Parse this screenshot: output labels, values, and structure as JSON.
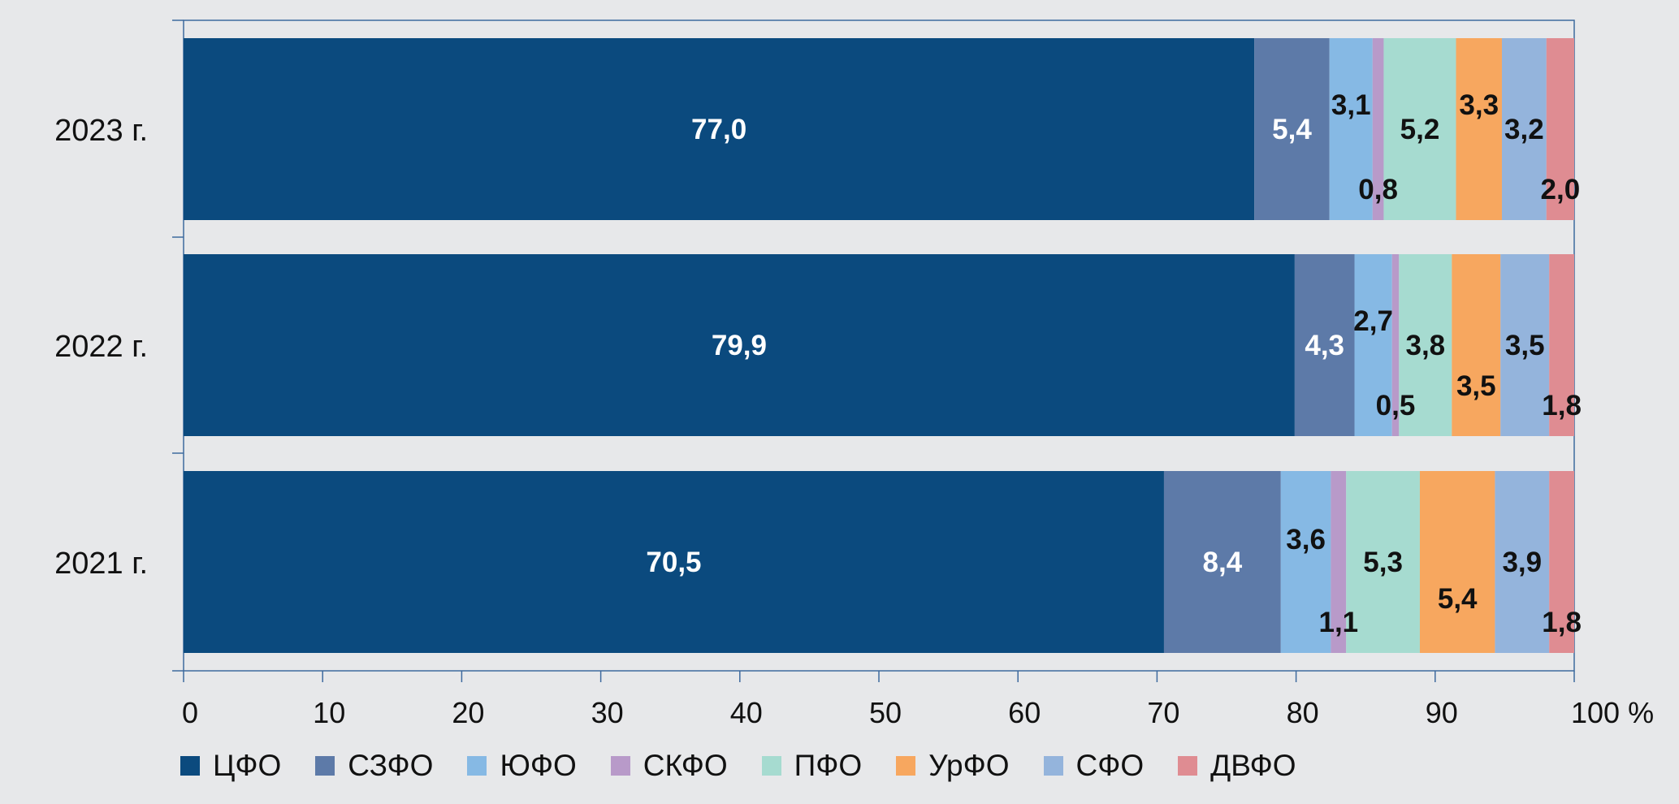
{
  "chart_data": {
    "type": "bar",
    "orientation": "horizontal",
    "stacked": true,
    "categories": [
      "2023 г.",
      "2022 г.",
      "2021 г."
    ],
    "series": [
      {
        "name": "ЦФО",
        "color": "#0b4a7e",
        "values": [
          77.0,
          79.9,
          70.5
        ],
        "labels": [
          "77,0",
          "79,9",
          "70,5"
        ]
      },
      {
        "name": "СЗФО",
        "color": "#5d7aa8",
        "values": [
          5.4,
          4.3,
          8.4
        ],
        "labels": [
          "5,4",
          "4,3",
          "8,4"
        ]
      },
      {
        "name": "ЮФО",
        "color": "#86b9e4",
        "values": [
          3.1,
          2.7,
          3.6
        ],
        "labels": [
          "3,1",
          "2,7",
          "3,6"
        ]
      },
      {
        "name": "СКФО",
        "color": "#b89ac9",
        "values": [
          0.8,
          0.5,
          1.1
        ],
        "labels": [
          "0,8",
          "0,5",
          "1,1"
        ]
      },
      {
        "name": "ПФО",
        "color": "#a6dbd0",
        "values": [
          5.2,
          3.8,
          5.3
        ],
        "labels": [
          "5,2",
          "3,8",
          "5,3"
        ]
      },
      {
        "name": "УрФО",
        "color": "#f7a75f",
        "values": [
          3.3,
          3.5,
          5.4
        ],
        "labels": [
          "3,3",
          "3,5",
          "5,4"
        ]
      },
      {
        "name": "СФО",
        "color": "#94b4dc",
        "values": [
          3.2,
          3.5,
          3.9
        ],
        "labels": [
          "3,2",
          "3,5",
          "3,9"
        ]
      },
      {
        "name": "ДВФО",
        "color": "#df8c92",
        "values": [
          2.0,
          1.8,
          1.8
        ],
        "labels": [
          "2,0",
          "1,8",
          "1,8"
        ]
      }
    ],
    "xlim": [
      0,
      100
    ],
    "xticks": [
      0,
      10,
      20,
      30,
      40,
      50,
      60,
      70,
      80,
      90,
      100
    ],
    "xtick_labels": [
      "0",
      "10",
      "20",
      "30",
      "40",
      "50",
      "60",
      "70",
      "80",
      "90",
      "100 %"
    ],
    "title": "",
    "xlabel": "",
    "ylabel": "",
    "legend_position": "bottom",
    "grid": false
  }
}
